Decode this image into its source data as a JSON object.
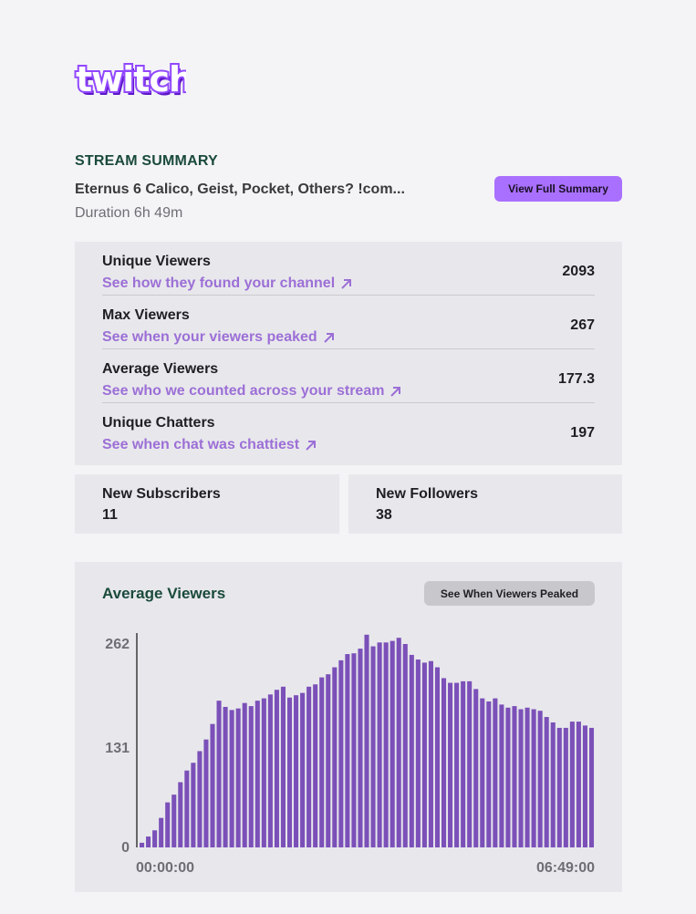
{
  "brand": {
    "name": "twitch",
    "color": "#9147ff",
    "shadow": "#5c16c5"
  },
  "summary": {
    "section_title": "STREAM SUMMARY",
    "stream_title": "Eternus 6 Calico, Geist, Pocket, Others? !com...",
    "duration": "Duration 6h 49m",
    "full_summary_label": "View Full Summary"
  },
  "stats": [
    {
      "label": "Unique Viewers",
      "link": "See how they found your channel",
      "value": "2093"
    },
    {
      "label": "Max Viewers",
      "link": "See when your viewers peaked",
      "value": "267"
    },
    {
      "label": "Average Viewers",
      "link": "See who we counted across your stream",
      "value": "177.3"
    },
    {
      "label": "Unique Chatters",
      "link": "See when chat was chattiest",
      "value": "197"
    }
  ],
  "cards": {
    "subscribers": {
      "label": "New Subscribers",
      "value": "11"
    },
    "followers": {
      "label": "New Followers",
      "value": "38"
    }
  },
  "chart": {
    "title": "Average Viewers",
    "button_label": "See When Viewers Peaked",
    "accent": "#7b50b8",
    "link_color": "#9c6fd6"
  },
  "chart_data": {
    "type": "bar",
    "title": "Average Viewers",
    "xlabel": "",
    "ylabel": "",
    "ylim": [
      0,
      262
    ],
    "yticks": [
      "0",
      "131",
      "262"
    ],
    "x_start_label": "00:00:00",
    "x_end_label": "06:49:00",
    "grid": false,
    "values": [
      6,
      14,
      22,
      38,
      58,
      68,
      84,
      99,
      109,
      124,
      139,
      159,
      189,
      181,
      177,
      179,
      186,
      182,
      189,
      192,
      197,
      203,
      207,
      193,
      196,
      199,
      207,
      210,
      219,
      223,
      232,
      241,
      249,
      250,
      256,
      274,
      259,
      264,
      264,
      266,
      270,
      262,
      248,
      242,
      238,
      240,
      232,
      218,
      212,
      212,
      214,
      214,
      204,
      192,
      188,
      192,
      184,
      180,
      182,
      178,
      180,
      178,
      176,
      168,
      161,
      154,
      154,
      162,
      162,
      157,
      154
    ]
  }
}
